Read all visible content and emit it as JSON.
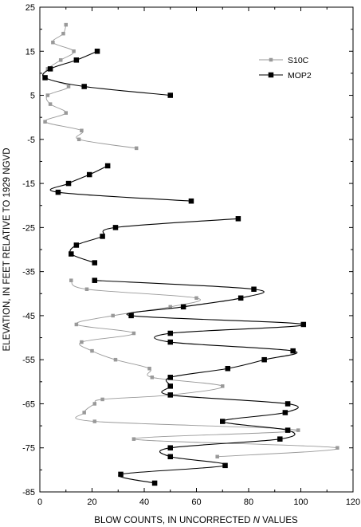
{
  "chart_data": {
    "type": "line",
    "xlabel_pre": "BLOW COUNTS, IN UNCORRECTED ",
    "xlabel_italic": "N",
    "xlabel_post": " VALUES",
    "ylabel": "ELEVATION, IN FEET RELATIVE TO 1929 NGVD",
    "xlim": [
      0,
      120
    ],
    "ylim": [
      -85,
      25
    ],
    "x_ticks": [
      0,
      20,
      40,
      60,
      80,
      100,
      120
    ],
    "y_ticks": [
      25,
      15,
      5,
      -5,
      -15,
      -25,
      -35,
      -45,
      -55,
      -65,
      -75,
      -85
    ],
    "grid": false,
    "legend_placement": "top-right",
    "series": [
      {
        "name": "S10C",
        "color": "#999999",
        "marker": "square-small",
        "points": [
          [
            10,
            21
          ],
          [
            9,
            19
          ],
          [
            5,
            17
          ],
          [
            13,
            15
          ],
          [
            8,
            13
          ],
          [
            3,
            11
          ],
          [
            2,
            9
          ],
          [
            11,
            7
          ],
          [
            3,
            5
          ],
          [
            4,
            3
          ],
          [
            10,
            1
          ],
          [
            2,
            -1
          ],
          [
            16,
            -3
          ],
          [
            15,
            -5
          ],
          [
            37,
            -7
          ],
          [
            12,
            -37
          ],
          [
            18,
            -39
          ],
          [
            60,
            -41
          ],
          [
            50,
            -43
          ],
          [
            28,
            -45
          ],
          [
            14,
            -47
          ],
          [
            36,
            -49
          ],
          [
            16,
            -51
          ],
          [
            20,
            -53
          ],
          [
            29,
            -55
          ],
          [
            42,
            -57
          ],
          [
            43,
            -59
          ],
          [
            70,
            -61
          ],
          [
            50,
            -63
          ],
          [
            24,
            -64
          ],
          [
            21,
            -65
          ],
          [
            17,
            -67
          ],
          [
            21,
            -69
          ],
          [
            99,
            -71
          ],
          [
            36,
            -73
          ],
          [
            114,
            -75
          ],
          [
            68,
            -77
          ]
        ]
      },
      {
        "name": "MOP2",
        "color": "#000000",
        "marker": "square",
        "points": [
          [
            22,
            15
          ],
          [
            14,
            13
          ],
          [
            4,
            11
          ],
          [
            2,
            9
          ],
          [
            17,
            7
          ],
          [
            50,
            5
          ],
          [
            26,
            -11
          ],
          [
            19,
            -13
          ],
          [
            11,
            -15
          ],
          [
            7,
            -17
          ],
          [
            58,
            -19
          ],
          [
            76,
            -23
          ],
          [
            29,
            -25
          ],
          [
            24,
            -27
          ],
          [
            14,
            -29
          ],
          [
            12,
            -31
          ],
          [
            21,
            -33
          ],
          [
            21,
            -37
          ],
          [
            82,
            -39
          ],
          [
            77,
            -41
          ],
          [
            55,
            -43
          ],
          [
            35,
            -45
          ],
          [
            101,
            -47
          ],
          [
            50,
            -49
          ],
          [
            50,
            -51
          ],
          [
            97,
            -53
          ],
          [
            86,
            -55
          ],
          [
            72,
            -57
          ],
          [
            50,
            -59
          ],
          [
            50,
            -61
          ],
          [
            50,
            -63
          ],
          [
            95,
            -65
          ],
          [
            94,
            -67
          ],
          [
            70,
            -69
          ],
          [
            95,
            -71
          ],
          [
            92,
            -73
          ],
          [
            50,
            -75
          ],
          [
            50,
            -77
          ],
          [
            71,
            -79
          ],
          [
            31,
            -81
          ],
          [
            44,
            -83
          ]
        ]
      }
    ]
  }
}
